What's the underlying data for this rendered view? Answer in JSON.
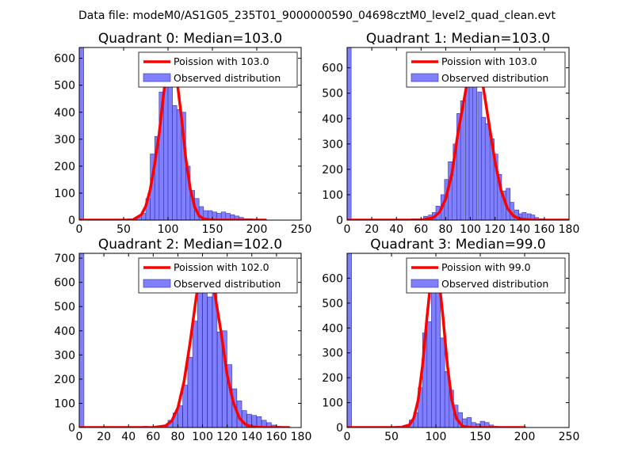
{
  "suptitle": "Data file: modeM0/AS1G05_235T01_9000000590_04698cztM0_level2_quad_clean.evt",
  "colors": {
    "bar_fill": "#8080ff",
    "bar_edge": "#3030b0",
    "poisson_line": "#ff0000"
  },
  "chart_data": [
    {
      "type": "bar",
      "title": "Quadrant 0: Median=103.0",
      "xlim": [
        0,
        250
      ],
      "ylim": [
        0,
        640
      ],
      "xticks": [
        0,
        50,
        100,
        150,
        200,
        250
      ],
      "yticks": [
        0,
        100,
        200,
        300,
        400,
        500,
        600
      ],
      "bin_width": 5,
      "legend": {
        "line": "Poission with 103.0",
        "bars": "Observed distribution"
      },
      "bars": [
        {
          "x": 0,
          "y": 640
        },
        {
          "x": 55,
          "y": 5
        },
        {
          "x": 60,
          "y": 5
        },
        {
          "x": 65,
          "y": 10
        },
        {
          "x": 70,
          "y": 25
        },
        {
          "x": 75,
          "y": 80
        },
        {
          "x": 80,
          "y": 245
        },
        {
          "x": 85,
          "y": 310
        },
        {
          "x": 90,
          "y": 475
        },
        {
          "x": 95,
          "y": 590
        },
        {
          "x": 100,
          "y": 610
        },
        {
          "x": 105,
          "y": 425
        },
        {
          "x": 110,
          "y": 410
        },
        {
          "x": 115,
          "y": 400
        },
        {
          "x": 120,
          "y": 200
        },
        {
          "x": 125,
          "y": 110
        },
        {
          "x": 130,
          "y": 80
        },
        {
          "x": 135,
          "y": 50
        },
        {
          "x": 140,
          "y": 35
        },
        {
          "x": 145,
          "y": 35
        },
        {
          "x": 150,
          "y": 30
        },
        {
          "x": 155,
          "y": 25
        },
        {
          "x": 160,
          "y": 30
        },
        {
          "x": 165,
          "y": 25
        },
        {
          "x": 170,
          "y": 20
        },
        {
          "x": 175,
          "y": 15
        },
        {
          "x": 180,
          "y": 10
        },
        {
          "x": 185,
          "y": 5
        },
        {
          "x": 190,
          "y": 5
        }
      ],
      "poisson": {
        "peak_x": 103,
        "peak_y": 610,
        "sigma": 11.5,
        "x": [
          0,
          50,
          60,
          70,
          75,
          80,
          85,
          90,
          95,
          100,
          103,
          106,
          110,
          115,
          120,
          125,
          130,
          135,
          140,
          150,
          160,
          180,
          210
        ],
        "y": [
          0,
          0,
          0,
          20,
          52,
          114,
          208,
          320,
          467,
          591,
          610,
          591,
          521,
          386,
          229,
          117,
          49,
          16,
          5,
          0,
          0,
          0,
          0
        ]
      }
    },
    {
      "type": "bar",
      "title": "Quadrant 1: Median=103.0",
      "xlim": [
        0,
        180
      ],
      "ylim": [
        0,
        680
      ],
      "xticks": [
        0,
        20,
        40,
        60,
        80,
        100,
        120,
        140,
        160,
        180
      ],
      "yticks": [
        0,
        100,
        200,
        300,
        400,
        500,
        600
      ],
      "bin_width": 3.3,
      "legend": {
        "line": "Poission with 103.0",
        "bars": "Observed distribution"
      },
      "bars": [
        {
          "x": 0,
          "y": 680
        },
        {
          "x": 52,
          "y": 5
        },
        {
          "x": 56,
          "y": 5
        },
        {
          "x": 62,
          "y": 15
        },
        {
          "x": 66,
          "y": 20
        },
        {
          "x": 69,
          "y": 30
        },
        {
          "x": 72,
          "y": 55
        },
        {
          "x": 76,
          "y": 100
        },
        {
          "x": 79,
          "y": 160
        },
        {
          "x": 82,
          "y": 230
        },
        {
          "x": 86,
          "y": 300
        },
        {
          "x": 89,
          "y": 420
        },
        {
          "x": 92,
          "y": 470
        },
        {
          "x": 96,
          "y": 570
        },
        {
          "x": 99,
          "y": 600
        },
        {
          "x": 102,
          "y": 575
        },
        {
          "x": 106,
          "y": 505
        },
        {
          "x": 109,
          "y": 405
        },
        {
          "x": 112,
          "y": 380
        },
        {
          "x": 116,
          "y": 320
        },
        {
          "x": 119,
          "y": 260
        },
        {
          "x": 122,
          "y": 180
        },
        {
          "x": 126,
          "y": 115
        },
        {
          "x": 129,
          "y": 125
        },
        {
          "x": 132,
          "y": 70
        },
        {
          "x": 136,
          "y": 40
        },
        {
          "x": 139,
          "y": 25
        },
        {
          "x": 142,
          "y": 30
        },
        {
          "x": 146,
          "y": 25
        },
        {
          "x": 149,
          "y": 20
        },
        {
          "x": 152,
          "y": 10
        },
        {
          "x": 156,
          "y": 5
        }
      ],
      "poisson": {
        "peak_x": 103,
        "peak_y": 640,
        "sigma": 10.5,
        "x": [
          0,
          50,
          60,
          70,
          75,
          80,
          85,
          90,
          95,
          100,
          103,
          106,
          110,
          115,
          120,
          125,
          130,
          135,
          140,
          150,
          160,
          180
        ],
        "y": [
          0,
          0,
          0,
          10,
          31,
          84,
          183,
          346,
          478,
          615,
          640,
          615,
          537,
          383,
          229,
          115,
          47,
          16,
          5,
          0,
          0,
          0
        ]
      }
    },
    {
      "type": "bar",
      "title": "Quadrant 2: Median=102.0",
      "xlim": [
        0,
        180
      ],
      "ylim": [
        0,
        720
      ],
      "xticks": [
        0,
        20,
        40,
        60,
        80,
        100,
        120,
        140,
        160,
        180
      ],
      "yticks": [
        0,
        100,
        200,
        300,
        400,
        500,
        600,
        700
      ],
      "bin_width": 3.8,
      "legend": {
        "line": "Poission with 102.0",
        "bars": "Observed distribution"
      },
      "bars": [
        {
          "x": 0,
          "y": 720
        },
        {
          "x": 52,
          "y": 5
        },
        {
          "x": 60,
          "y": 5
        },
        {
          "x": 68,
          "y": 10
        },
        {
          "x": 72,
          "y": 30
        },
        {
          "x": 76,
          "y": 60
        },
        {
          "x": 80,
          "y": 90
        },
        {
          "x": 84,
          "y": 175
        },
        {
          "x": 88,
          "y": 290
        },
        {
          "x": 92,
          "y": 440
        },
        {
          "x": 96,
          "y": 580
        },
        {
          "x": 100,
          "y": 620
        },
        {
          "x": 104,
          "y": 540
        },
        {
          "x": 108,
          "y": 610
        },
        {
          "x": 112,
          "y": 395
        },
        {
          "x": 116,
          "y": 400
        },
        {
          "x": 120,
          "y": 260
        },
        {
          "x": 124,
          "y": 160
        },
        {
          "x": 128,
          "y": 110
        },
        {
          "x": 132,
          "y": 70
        },
        {
          "x": 136,
          "y": 55
        },
        {
          "x": 140,
          "y": 50
        },
        {
          "x": 144,
          "y": 45
        },
        {
          "x": 148,
          "y": 30
        },
        {
          "x": 152,
          "y": 20
        },
        {
          "x": 156,
          "y": 10
        },
        {
          "x": 160,
          "y": 5
        }
      ],
      "poisson": {
        "peak_x": 102,
        "peak_y": 680,
        "sigma": 10.5,
        "x": [
          0,
          50,
          60,
          70,
          75,
          80,
          85,
          90,
          95,
          100,
          102,
          105,
          110,
          115,
          120,
          125,
          130,
          135,
          140,
          150,
          160,
          170
        ],
        "y": [
          0,
          0,
          0,
          7,
          27,
          81,
          190,
          354,
          543,
          667,
          680,
          653,
          552,
          395,
          217,
          103,
          38,
          12,
          3,
          0,
          0,
          0
        ]
      }
    },
    {
      "type": "bar",
      "title": "Quadrant 3: Median=99.0",
      "xlim": [
        0,
        250
      ],
      "ylim": [
        0,
        700
      ],
      "xticks": [
        0,
        50,
        100,
        150,
        200,
        250
      ],
      "yticks": [
        0,
        100,
        200,
        300,
        400,
        500,
        600
      ],
      "bin_width": 5,
      "legend": {
        "line": "Poission with 99.0",
        "bars": "Observed distribution"
      },
      "bars": [
        {
          "x": 0,
          "y": 700
        },
        {
          "x": 55,
          "y": 5
        },
        {
          "x": 65,
          "y": 10
        },
        {
          "x": 70,
          "y": 30
        },
        {
          "x": 75,
          "y": 60
        },
        {
          "x": 80,
          "y": 160
        },
        {
          "x": 85,
          "y": 380
        },
        {
          "x": 90,
          "y": 425
        },
        {
          "x": 95,
          "y": 600
        },
        {
          "x": 100,
          "y": 630
        },
        {
          "x": 105,
          "y": 360
        },
        {
          "x": 110,
          "y": 225
        },
        {
          "x": 115,
          "y": 150
        },
        {
          "x": 120,
          "y": 90
        },
        {
          "x": 125,
          "y": 60
        },
        {
          "x": 130,
          "y": 35
        },
        {
          "x": 135,
          "y": 40
        },
        {
          "x": 140,
          "y": 20
        },
        {
          "x": 145,
          "y": 15
        },
        {
          "x": 150,
          "y": 25
        },
        {
          "x": 155,
          "y": 20
        },
        {
          "x": 160,
          "y": 10
        },
        {
          "x": 165,
          "y": 5
        }
      ],
      "poisson": {
        "peak_x": 99,
        "peak_y": 665,
        "sigma": 10,
        "x": [
          0,
          50,
          60,
          70,
          75,
          80,
          85,
          90,
          95,
          99,
          103,
          108,
          113,
          118,
          123,
          130,
          140,
          150,
          170,
          200
        ],
        "y": [
          0,
          0,
          0,
          10,
          37,
          109,
          250,
          444,
          614,
          665,
          614,
          444,
          250,
          109,
          37,
          5,
          0,
          0,
          0,
          0
        ]
      }
    }
  ]
}
